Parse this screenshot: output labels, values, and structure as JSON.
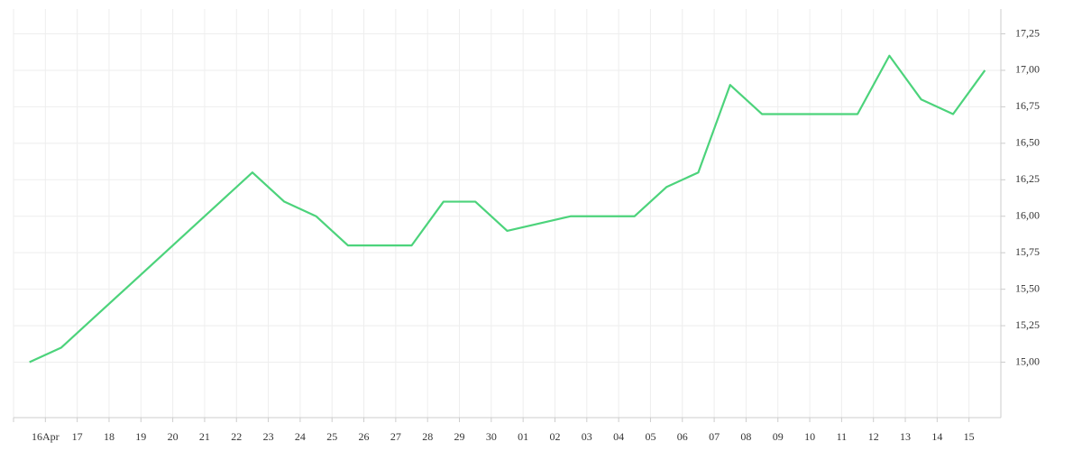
{
  "chart_data": {
    "type": "line",
    "categories": [
      null,
      "16Apr",
      "17",
      "18",
      "19",
      "20",
      "21",
      "22",
      "23",
      "24",
      "25",
      "26",
      "27",
      "28",
      "29",
      "30",
      "01",
      "02",
      "03",
      "04",
      "05",
      "06",
      "07",
      "08",
      "09",
      "10",
      "11",
      "12",
      "13",
      "14",
      "15"
    ],
    "series": [
      {
        "color": "#4cd37b",
        "values": [
          15.0,
          15.1,
          15.3,
          15.5,
          15.7,
          15.9,
          16.1,
          16.3,
          16.1,
          16.0,
          15.8,
          15.8,
          15.8,
          16.1,
          16.1,
          15.9,
          15.95,
          16.0,
          16.0,
          16.0,
          16.2,
          16.3,
          16.9,
          16.7,
          16.7,
          16.7,
          16.7,
          17.1,
          16.8,
          16.7,
          17.0
        ]
      }
    ],
    "ylim": [
      14.62,
      17.42
    ],
    "yticks": [
      {
        "value": 15,
        "label": "15,00"
      },
      {
        "value": 15.25,
        "label": "15,25"
      },
      {
        "value": 15.5,
        "label": "15,50"
      },
      {
        "value": 15.75,
        "label": "15,75"
      },
      {
        "value": 16,
        "label": "16,00"
      },
      {
        "value": 16.25,
        "label": "16,25"
      },
      {
        "value": 16.5,
        "label": "16,50"
      },
      {
        "value": 16.75,
        "label": "16,75"
      },
      {
        "value": 17,
        "label": "17,00"
      },
      {
        "value": 17.25,
        "label": "17,25"
      }
    ],
    "grid": true
  }
}
